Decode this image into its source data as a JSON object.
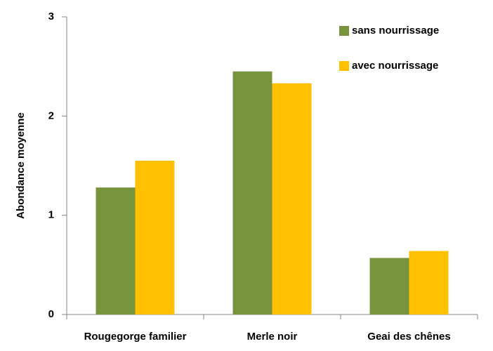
{
  "chart_data": {
    "type": "bar",
    "y_label": "Abondance moyenne",
    "categories": [
      "Rougegorge familier",
      "Merle noir",
      "Geai des chênes"
    ],
    "series": [
      {
        "name": "sans nourrissage",
        "color": "#77933c",
        "values": [
          1.28,
          2.45,
          0.57
        ]
      },
      {
        "name": "avec nourrissage",
        "color": "#ffc000",
        "values": [
          1.55,
          2.33,
          0.64
        ]
      }
    ],
    "ylim": [
      0,
      3
    ],
    "yticks": [
      0,
      1,
      2,
      3
    ],
    "grid": false,
    "legend": "top-right"
  }
}
